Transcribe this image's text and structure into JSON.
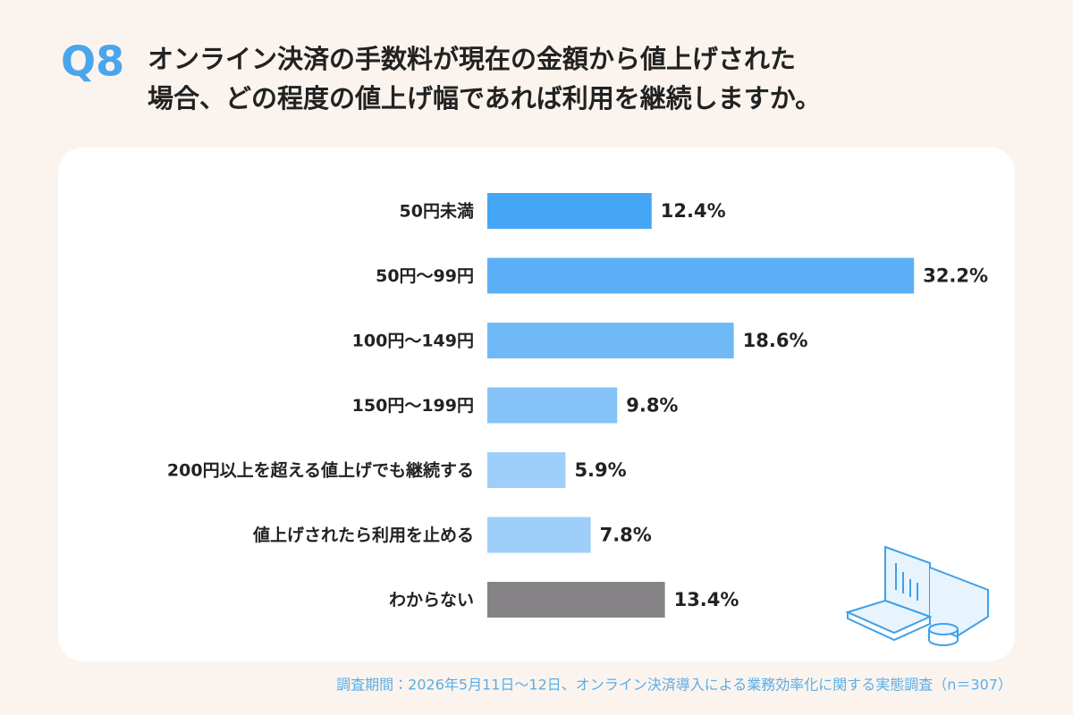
{
  "chart_data": {
    "type": "bar",
    "orientation": "horizontal",
    "question_number": "Q8",
    "title_lines": [
      "オンライン決済の手数料が現在の金額から値上げされた",
      "場合、どの程度の値上げ幅であれば利用を継続しますか。"
    ],
    "categories": [
      "50円未満",
      "50円～99円",
      "100円～149円",
      "150円～199円",
      "200円以上を超える値上げでも継続する",
      "値上げされたら利用を止める",
      "わからない"
    ],
    "values": [
      12.4,
      32.2,
      18.6,
      9.8,
      5.9,
      7.8,
      13.4
    ],
    "value_labels": [
      "12.4%",
      "32.2%",
      "18.6%",
      "9.8%",
      "5.9%",
      "7.8%",
      "13.4%"
    ],
    "colors": [
      "#44a6f5",
      "#5caff6",
      "#70b9f7",
      "#85c3f8",
      "#9dcffa",
      "#9dcffa",
      "#858385"
    ],
    "footnote": "調査期間：2026年5月11日～12日、オンライン決済導入による業務効率化に関する実態調査（n＝307）"
  }
}
